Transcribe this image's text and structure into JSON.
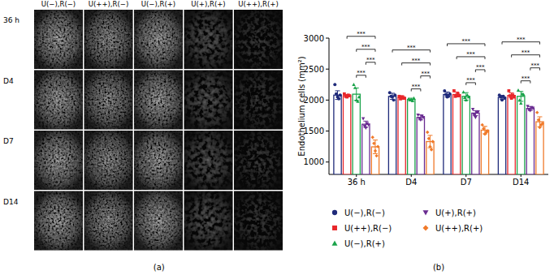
{
  "figure": {
    "panel_a": {
      "label": "(a)",
      "columns": [
        "U(−),R(−)",
        "U(++),R(−)",
        "U(−),R(+)",
        "U(+),R(+)",
        "U(++),R(+)"
      ],
      "rows": [
        "36 h",
        "D4",
        "D7",
        "D14"
      ]
    },
    "panel_b_label": "(b)"
  },
  "chart_data": {
    "type": "bar",
    "y_label": "Endothelium cells (mm²)",
    "categories": [
      "36 h",
      "D4",
      "D7",
      "D14"
    ],
    "ylim": [
      800,
      3000
    ],
    "yticks": [
      1000,
      1500,
      2000,
      2500,
      3000
    ],
    "grid": false,
    "series": [
      {
        "name": "U(−),R(−)",
        "color": "#1f2a7a",
        "marker": "circle",
        "values": [
          2080,
          2060,
          2090,
          2045
        ],
        "errors": [
          70,
          50,
          40,
          30
        ],
        "points": [
          [
            2250,
            2100,
            2050,
            2020,
            2080
          ],
          [
            2120,
            2060,
            2050,
            2000,
            2080
          ],
          [
            2150,
            2090,
            2050,
            2060,
            2100
          ],
          [
            2080,
            2050,
            2000,
            2060,
            2030
          ]
        ]
      },
      {
        "name": "U(++),R(−)",
        "color": "#e8262a",
        "marker": "square",
        "values": [
          2070,
          2040,
          2090,
          2075
        ],
        "errors": [
          20,
          30,
          40,
          40
        ],
        "points": [
          [
            2100,
            2060,
            2050,
            2080,
            2070
          ],
          [
            2060,
            2020,
            2050,
            2040,
            2030
          ],
          [
            2150,
            2060,
            2080,
            2100,
            2070
          ],
          [
            2150,
            2070,
            2030,
            2080,
            2050
          ]
        ]
      },
      {
        "name": "U(−),R(+)",
        "color": "#1aa34a",
        "marker": "triangle",
        "values": [
          2095,
          2010,
          2060,
          2060
        ],
        "errors": [
          100,
          20,
          60,
          80
        ],
        "points": [
          [
            2250,
            2200,
            2000,
            1980,
            2050
          ],
          [
            2020,
            2000,
            2010,
            1990,
            2030
          ],
          [
            2130,
            2040,
            2000,
            2080,
            2050
          ],
          [
            2160,
            2000,
            1950,
            2100,
            2090
          ]
        ]
      },
      {
        "name": "U(+),R(+)",
        "color": "#6a2c91",
        "marker": "triangle-down",
        "values": [
          1610,
          1720,
          1790,
          1865
        ],
        "errors": [
          50,
          40,
          40,
          30
        ],
        "points": [
          [
            1700,
            1580,
            1550,
            1620,
            1600
          ],
          [
            1760,
            1700,
            1680,
            1740,
            1720
          ],
          [
            1850,
            1760,
            1720,
            1800,
            1810
          ],
          [
            1900,
            1840,
            1830,
            1880,
            1870
          ]
        ]
      },
      {
        "name": "U(++),R(+)",
        "color": "#f07a2a",
        "marker": "diamond",
        "values": [
          1245,
          1330,
          1515,
          1650
        ],
        "errors": [
          110,
          100,
          60,
          80
        ],
        "points": [
          [
            1400,
            1300,
            1180,
            1100,
            1250
          ],
          [
            1480,
            1380,
            1250,
            1200,
            1330
          ],
          [
            1600,
            1540,
            1450,
            1480,
            1500
          ],
          [
            1800,
            1680,
            1560,
            1600,
            1620
          ]
        ]
      }
    ],
    "significance": [
      {
        "category": 0,
        "from": 1,
        "to": 4,
        "label": "***"
      },
      {
        "category": 0,
        "from": 2,
        "to": 4,
        "label": "***"
      },
      {
        "category": 0,
        "from": 2,
        "to": 3,
        "label": "***"
      },
      {
        "category": 0,
        "from": 3,
        "to": 4,
        "label": "***"
      },
      {
        "category": 1,
        "from": 0,
        "to": 4,
        "label": "***"
      },
      {
        "category": 1,
        "from": 1,
        "to": 4,
        "label": "***"
      },
      {
        "category": 1,
        "from": 2,
        "to": 3,
        "label": "***"
      },
      {
        "category": 1,
        "from": 3,
        "to": 4,
        "label": "***"
      },
      {
        "category": 2,
        "from": 0,
        "to": 4,
        "label": "***"
      },
      {
        "category": 2,
        "from": 1,
        "to": 4,
        "label": "***"
      },
      {
        "category": 2,
        "from": 2,
        "to": 3,
        "label": "***"
      },
      {
        "category": 2,
        "from": 3,
        "to": 4,
        "label": "***"
      },
      {
        "category": 3,
        "from": 0,
        "to": 4,
        "label": "***"
      },
      {
        "category": 3,
        "from": 1,
        "to": 4,
        "label": "***"
      },
      {
        "category": 3,
        "from": 2,
        "to": 3,
        "label": "***"
      },
      {
        "category": 3,
        "from": 3,
        "to": 4,
        "label": "***"
      }
    ]
  }
}
